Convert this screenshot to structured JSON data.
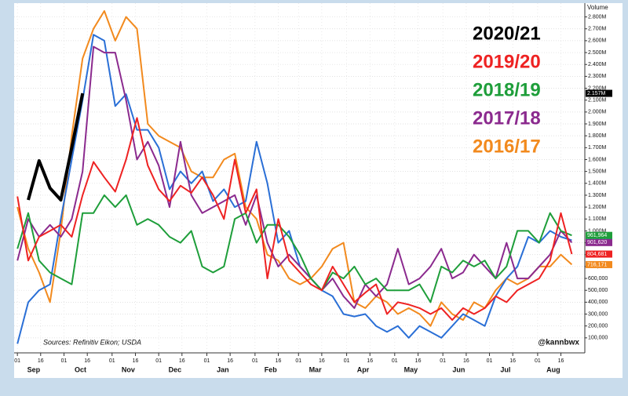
{
  "chart_data": {
    "type": "line",
    "axis_title": "Volume",
    "source": "Sources: Refinitiv Eikon; USDA",
    "watermark": "@kannbwx",
    "x": [
      0,
      1,
      2,
      3,
      4,
      5,
      6,
      7,
      8,
      9,
      10,
      11,
      12,
      13,
      14,
      15,
      16,
      17,
      18,
      19,
      20,
      21,
      22,
      23,
      24,
      25,
      26,
      27,
      28,
      29,
      30,
      31,
      32,
      33,
      34,
      35,
      36,
      37,
      38,
      39,
      40,
      41,
      42,
      43,
      44,
      45,
      46,
      47,
      48,
      49,
      50,
      51
    ],
    "xlim": [
      -0.3,
      52.2
    ],
    "xticks": [
      {
        "value": 0,
        "label": "01"
      },
      {
        "value": 2.14,
        "label": "16"
      },
      {
        "value": 4.29,
        "label": "01"
      },
      {
        "value": 6.43,
        "label": "16"
      },
      {
        "value": 8.71,
        "label": "01"
      },
      {
        "value": 10.86,
        "label": "16"
      },
      {
        "value": 13.0,
        "label": "01"
      },
      {
        "value": 15.14,
        "label": "16"
      },
      {
        "value": 17.43,
        "label": "01"
      },
      {
        "value": 19.57,
        "label": "16"
      },
      {
        "value": 21.86,
        "label": "01"
      },
      {
        "value": 24.0,
        "label": "16"
      },
      {
        "value": 25.86,
        "label": "01"
      },
      {
        "value": 28.0,
        "label": "16"
      },
      {
        "value": 30.29,
        "label": "01"
      },
      {
        "value": 32.43,
        "label": "16"
      },
      {
        "value": 34.71,
        "label": "01"
      },
      {
        "value": 36.86,
        "label": "16"
      },
      {
        "value": 39.14,
        "label": "01"
      },
      {
        "value": 41.29,
        "label": "16"
      },
      {
        "value": 43.43,
        "label": "01"
      },
      {
        "value": 45.57,
        "label": "16"
      },
      {
        "value": 47.86,
        "label": "01"
      },
      {
        "value": 50.0,
        "label": "16"
      }
    ],
    "month_ticks": [
      {
        "value": 1.5,
        "label": "Sep"
      },
      {
        "value": 5.8,
        "label": "Oct"
      },
      {
        "value": 10.2,
        "label": "Nov"
      },
      {
        "value": 14.5,
        "label": "Dec"
      },
      {
        "value": 18.9,
        "label": "Jan"
      },
      {
        "value": 23.3,
        "label": "Feb"
      },
      {
        "value": 27.4,
        "label": "Mar"
      },
      {
        "value": 31.8,
        "label": "Apr"
      },
      {
        "value": 36.2,
        "label": "May"
      },
      {
        "value": 40.6,
        "label": "Jun"
      },
      {
        "value": 44.9,
        "label": "Jul"
      },
      {
        "value": 49.3,
        "label": "Aug"
      }
    ],
    "ylim": [
      0,
      2850000
    ],
    "yticks": [
      {
        "value": 100000,
        "label": "100,000"
      },
      {
        "value": 200000,
        "label": "200,000"
      },
      {
        "value": 300000,
        "label": "300,000"
      },
      {
        "value": 400000,
        "label": "400,000"
      },
      {
        "value": 500000,
        "label": "500,000"
      },
      {
        "value": 600000,
        "label": "600,000"
      },
      {
        "value": 700000,
        "label": "700,000"
      },
      {
        "value": 800000,
        "label": "800,000"
      },
      {
        "value": 900000,
        "label": "900,000"
      },
      {
        "value": 1000000,
        "label": "1.000M"
      },
      {
        "value": 1100000,
        "label": "1.100M"
      },
      {
        "value": 1200000,
        "label": "1.200M"
      },
      {
        "value": 1300000,
        "label": "1.300M"
      },
      {
        "value": 1400000,
        "label": "1.400M"
      },
      {
        "value": 1500000,
        "label": "1.500M"
      },
      {
        "value": 1600000,
        "label": "1.600M"
      },
      {
        "value": 1700000,
        "label": "1.700M"
      },
      {
        "value": 1800000,
        "label": "1.800M"
      },
      {
        "value": 1900000,
        "label": "1.900M"
      },
      {
        "value": 2000000,
        "label": "2.000M"
      },
      {
        "value": 2100000,
        "label": "2.100M"
      },
      {
        "value": 2200000,
        "label": "2.200M"
      },
      {
        "value": 2300000,
        "label": "2.300M"
      },
      {
        "value": 2400000,
        "label": "2.400M"
      },
      {
        "value": 2500000,
        "label": "2.500M"
      },
      {
        "value": 2600000,
        "label": "2.600M"
      },
      {
        "value": 2700000,
        "label": "2.700M"
      },
      {
        "value": 2800000,
        "label": "2.800M"
      }
    ],
    "grid": true,
    "series": [
      {
        "name": "2016/17",
        "color": "#f28a1e",
        "end_label": "716,171",
        "values": [
          1200000,
          850000,
          650000,
          400000,
          1000000,
          1800000,
          2450000,
          2700000,
          2850000,
          2600000,
          2800000,
          2700000,
          1900000,
          1800000,
          1750000,
          1700000,
          1500000,
          1450000,
          1450000,
          1600000,
          1650000,
          1200000,
          1100000,
          800000,
          750000,
          600000,
          550000,
          600000,
          700000,
          850000,
          900000,
          400000,
          350000,
          450000,
          400000,
          300000,
          350000,
          300000,
          200000,
          400000,
          300000,
          250000,
          400000,
          350000,
          500000,
          600000,
          550000,
          600000,
          700000,
          700000,
          800000,
          716171
        ]
      },
      {
        "color": "#2a6fd6",
        "end_label": "921,137",
        "values": [
          50000,
          400000,
          500000,
          550000,
          1100000,
          1600000,
          2100000,
          2650000,
          2600000,
          2050000,
          2150000,
          1850000,
          1850000,
          1700000,
          1350000,
          1500000,
          1400000,
          1500000,
          1250000,
          1350000,
          1200000,
          1250000,
          1750000,
          1400000,
          900000,
          1000000,
          700000,
          600000,
          500000,
          450000,
          300000,
          280000,
          300000,
          200000,
          150000,
          200000,
          100000,
          200000,
          150000,
          100000,
          200000,
          300000,
          250000,
          200000,
          450000,
          600000,
          700000,
          950000,
          900000,
          1000000,
          950000,
          921137
        ]
      },
      {
        "name": "2017/18",
        "color": "#8b2a8e",
        "end_label": "901,620",
        "values": [
          750000,
          1100000,
          950000,
          1050000,
          950000,
          1100000,
          1500000,
          2550000,
          2500000,
          2500000,
          2100000,
          1600000,
          1750000,
          1550000,
          1200000,
          1750000,
          1300000,
          1150000,
          1200000,
          1250000,
          1300000,
          1050000,
          1300000,
          900000,
          700000,
          800000,
          700000,
          600000,
          500000,
          600000,
          450000,
          350000,
          550000,
          450000,
          550000,
          850000,
          550000,
          600000,
          700000,
          850000,
          600000,
          650000,
          800000,
          700000,
          600000,
          900000,
          600000,
          600000,
          700000,
          800000,
          1000000,
          901620
        ]
      },
      {
        "name": "2018/19",
        "color": "#1e9e3a",
        "end_label": "961,964",
        "values": [
          850000,
          1150000,
          750000,
          650000,
          600000,
          550000,
          1150000,
          1150000,
          1300000,
          1200000,
          1300000,
          1050000,
          1100000,
          1050000,
          950000,
          900000,
          1000000,
          700000,
          650000,
          700000,
          1100000,
          1150000,
          900000,
          1050000,
          1050000,
          950000,
          800000,
          600000,
          500000,
          650000,
          600000,
          700000,
          550000,
          600000,
          500000,
          500000,
          500000,
          550000,
          400000,
          700000,
          650000,
          750000,
          700000,
          750000,
          600000,
          700000,
          1000000,
          1000000,
          900000,
          1150000,
          1000000,
          961964
        ]
      },
      {
        "name": "2019/20",
        "color": "#ee2222",
        "end_label": "804,681",
        "values": [
          1290000,
          750000,
          950000,
          1000000,
          1050000,
          950000,
          1300000,
          1580000,
          1450000,
          1330000,
          1600000,
          1950000,
          1550000,
          1350000,
          1250000,
          1380000,
          1320000,
          1450000,
          1300000,
          1100000,
          1600000,
          1150000,
          1350000,
          600000,
          1100000,
          750000,
          650000,
          550000,
          500000,
          700000,
          550000,
          400000,
          480000,
          550000,
          300000,
          400000,
          380000,
          350000,
          300000,
          350000,
          250000,
          350000,
          300000,
          350000,
          450000,
          400000,
          500000,
          550000,
          600000,
          750000,
          1150000,
          804681
        ]
      },
      {
        "name": "2020/21",
        "color": "#000000",
        "end_label": "2.157M",
        "values": [
          null,
          1260000,
          1590000,
          1360000,
          1260000,
          1700000,
          2157000,
          null,
          null,
          null,
          null,
          null,
          null,
          null,
          null,
          null,
          null,
          null,
          null,
          null,
          null,
          null,
          null,
          null,
          null,
          null,
          null,
          null,
          null,
          null,
          null,
          null,
          null,
          null,
          null,
          null,
          null,
          null,
          null,
          null,
          null,
          null,
          null,
          null,
          null,
          null,
          null,
          null,
          null,
          null,
          null,
          null
        ]
      }
    ]
  }
}
